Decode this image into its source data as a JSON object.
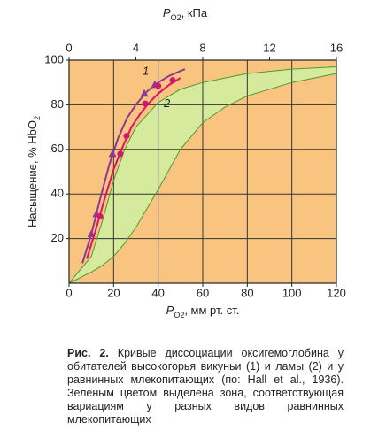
{
  "chart_data": {
    "type": "line",
    "x_label": {
      "main": "P",
      "sub": "O2",
      "rest": ", мм рт. ст."
    },
    "x2_label": {
      "main": "P",
      "sub": "O2",
      "rest": ", кПа"
    },
    "y_label": {
      "main": "Насыщение, % HbO",
      "sub": "2"
    },
    "xlim": [
      0,
      120
    ],
    "xticks": [
      0,
      20,
      40,
      60,
      80,
      100,
      120
    ],
    "x2lim": [
      0,
      16
    ],
    "x2ticks": [
      0,
      4,
      8,
      12,
      16
    ],
    "ylim": [
      0,
      100
    ],
    "yticks": [
      20,
      40,
      60,
      80,
      100
    ],
    "grid": true,
    "background": "#f9c47f",
    "band": {
      "color": "#d6ea9e",
      "edge_color": "#4f9a2c",
      "x": [
        0,
        10,
        15,
        20,
        25,
        30,
        40,
        50,
        60,
        70,
        80,
        100,
        120
      ],
      "upper": [
        0,
        12,
        28,
        46,
        60,
        70,
        81,
        87,
        90,
        92,
        94,
        96,
        97
      ],
      "lower": [
        0,
        5,
        8,
        12,
        18,
        25,
        42,
        60,
        72,
        79,
        84,
        90,
        94
      ]
    },
    "series": [
      {
        "name": "1",
        "color": "#8b3a91",
        "marker": "triangle",
        "x": [
          6,
          10,
          14,
          18,
          22,
          26,
          30,
          35,
          40,
          45,
          52
        ],
        "values": [
          9,
          22,
          38,
          53,
          65,
          74,
          80,
          86,
          90,
          93,
          96
        ],
        "points_x": [
          10,
          12.3,
          19.5,
          33.8,
          38.5
        ],
        "points_y": [
          22,
          31,
          58,
          85,
          89
        ]
      },
      {
        "name": "2",
        "color": "#d8156a",
        "marker": "circle",
        "x": [
          8,
          12,
          16,
          20,
          24,
          28,
          32,
          36,
          40,
          45,
          50
        ],
        "values": [
          11,
          24,
          38,
          51,
          61,
          70,
          76,
          81,
          85,
          89,
          92
        ],
        "points_x": [
          13.9,
          23,
          25.8,
          34.2,
          40,
          46.5
        ],
        "points_y": [
          30,
          58,
          66,
          80.5,
          88.5,
          91
        ]
      }
    ]
  },
  "caption": {
    "label": "Рис. 2.",
    "text": "Кривые диссоциации оксигемоглобина у обитателей высокогорья викуньи (1) и ламы (2) и у равнинных млекопитающих (по: Hall et al., 1936). Зеленым цветом выделена зона, соответствующая вариациям у разных видов равнинных млекопитающих"
  }
}
